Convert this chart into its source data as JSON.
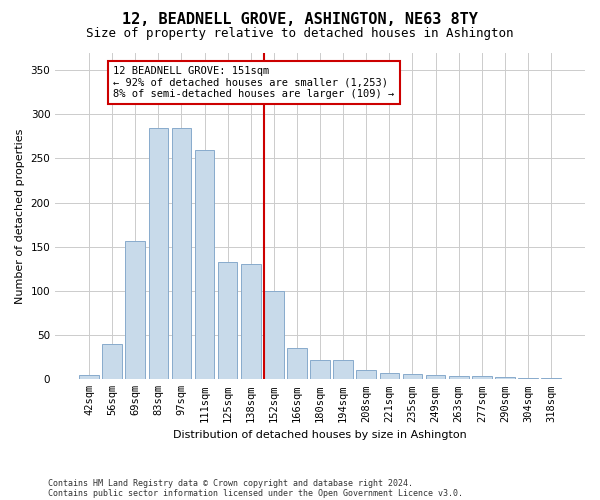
{
  "title": "12, BEADNELL GROVE, ASHINGTON, NE63 8TY",
  "subtitle": "Size of property relative to detached houses in Ashington",
  "xlabel": "Distribution of detached houses by size in Ashington",
  "ylabel": "Number of detached properties",
  "bar_color": "#c8daea",
  "bar_edge_color": "#88aacc",
  "vline_color": "#cc0000",
  "annotation_line1": "12 BEADNELL GROVE: 151sqm",
  "annotation_line2": "← 92% of detached houses are smaller (1,253)",
  "annotation_line3": "8% of semi-detached houses are larger (109) →",
  "annotation_box_facecolor": "white",
  "annotation_box_edgecolor": "#cc0000",
  "categories": [
    "42sqm",
    "56sqm",
    "69sqm",
    "83sqm",
    "97sqm",
    "111sqm",
    "125sqm",
    "138sqm",
    "152sqm",
    "166sqm",
    "180sqm",
    "194sqm",
    "208sqm",
    "221sqm",
    "235sqm",
    "249sqm",
    "263sqm",
    "277sqm",
    "290sqm",
    "304sqm",
    "318sqm"
  ],
  "values": [
    5,
    40,
    157,
    285,
    285,
    260,
    133,
    130,
    100,
    35,
    22,
    22,
    10,
    7,
    6,
    5,
    4,
    4,
    3,
    2,
    1
  ],
  "vline_bar_idx": 8,
  "ylim": [
    0,
    370
  ],
  "yticks": [
    0,
    50,
    100,
    150,
    200,
    250,
    300,
    350
  ],
  "grid_color": "#cccccc",
  "bg_color": "#ffffff",
  "footer_text1": "Contains HM Land Registry data © Crown copyright and database right 2024.",
  "footer_text2": "Contains public sector information licensed under the Open Government Licence v3.0.",
  "title_fontsize": 11,
  "subtitle_fontsize": 9,
  "axis_label_fontsize": 8,
  "tick_fontsize": 7.5,
  "annotation_fontsize": 7.5,
  "footer_fontsize": 6
}
